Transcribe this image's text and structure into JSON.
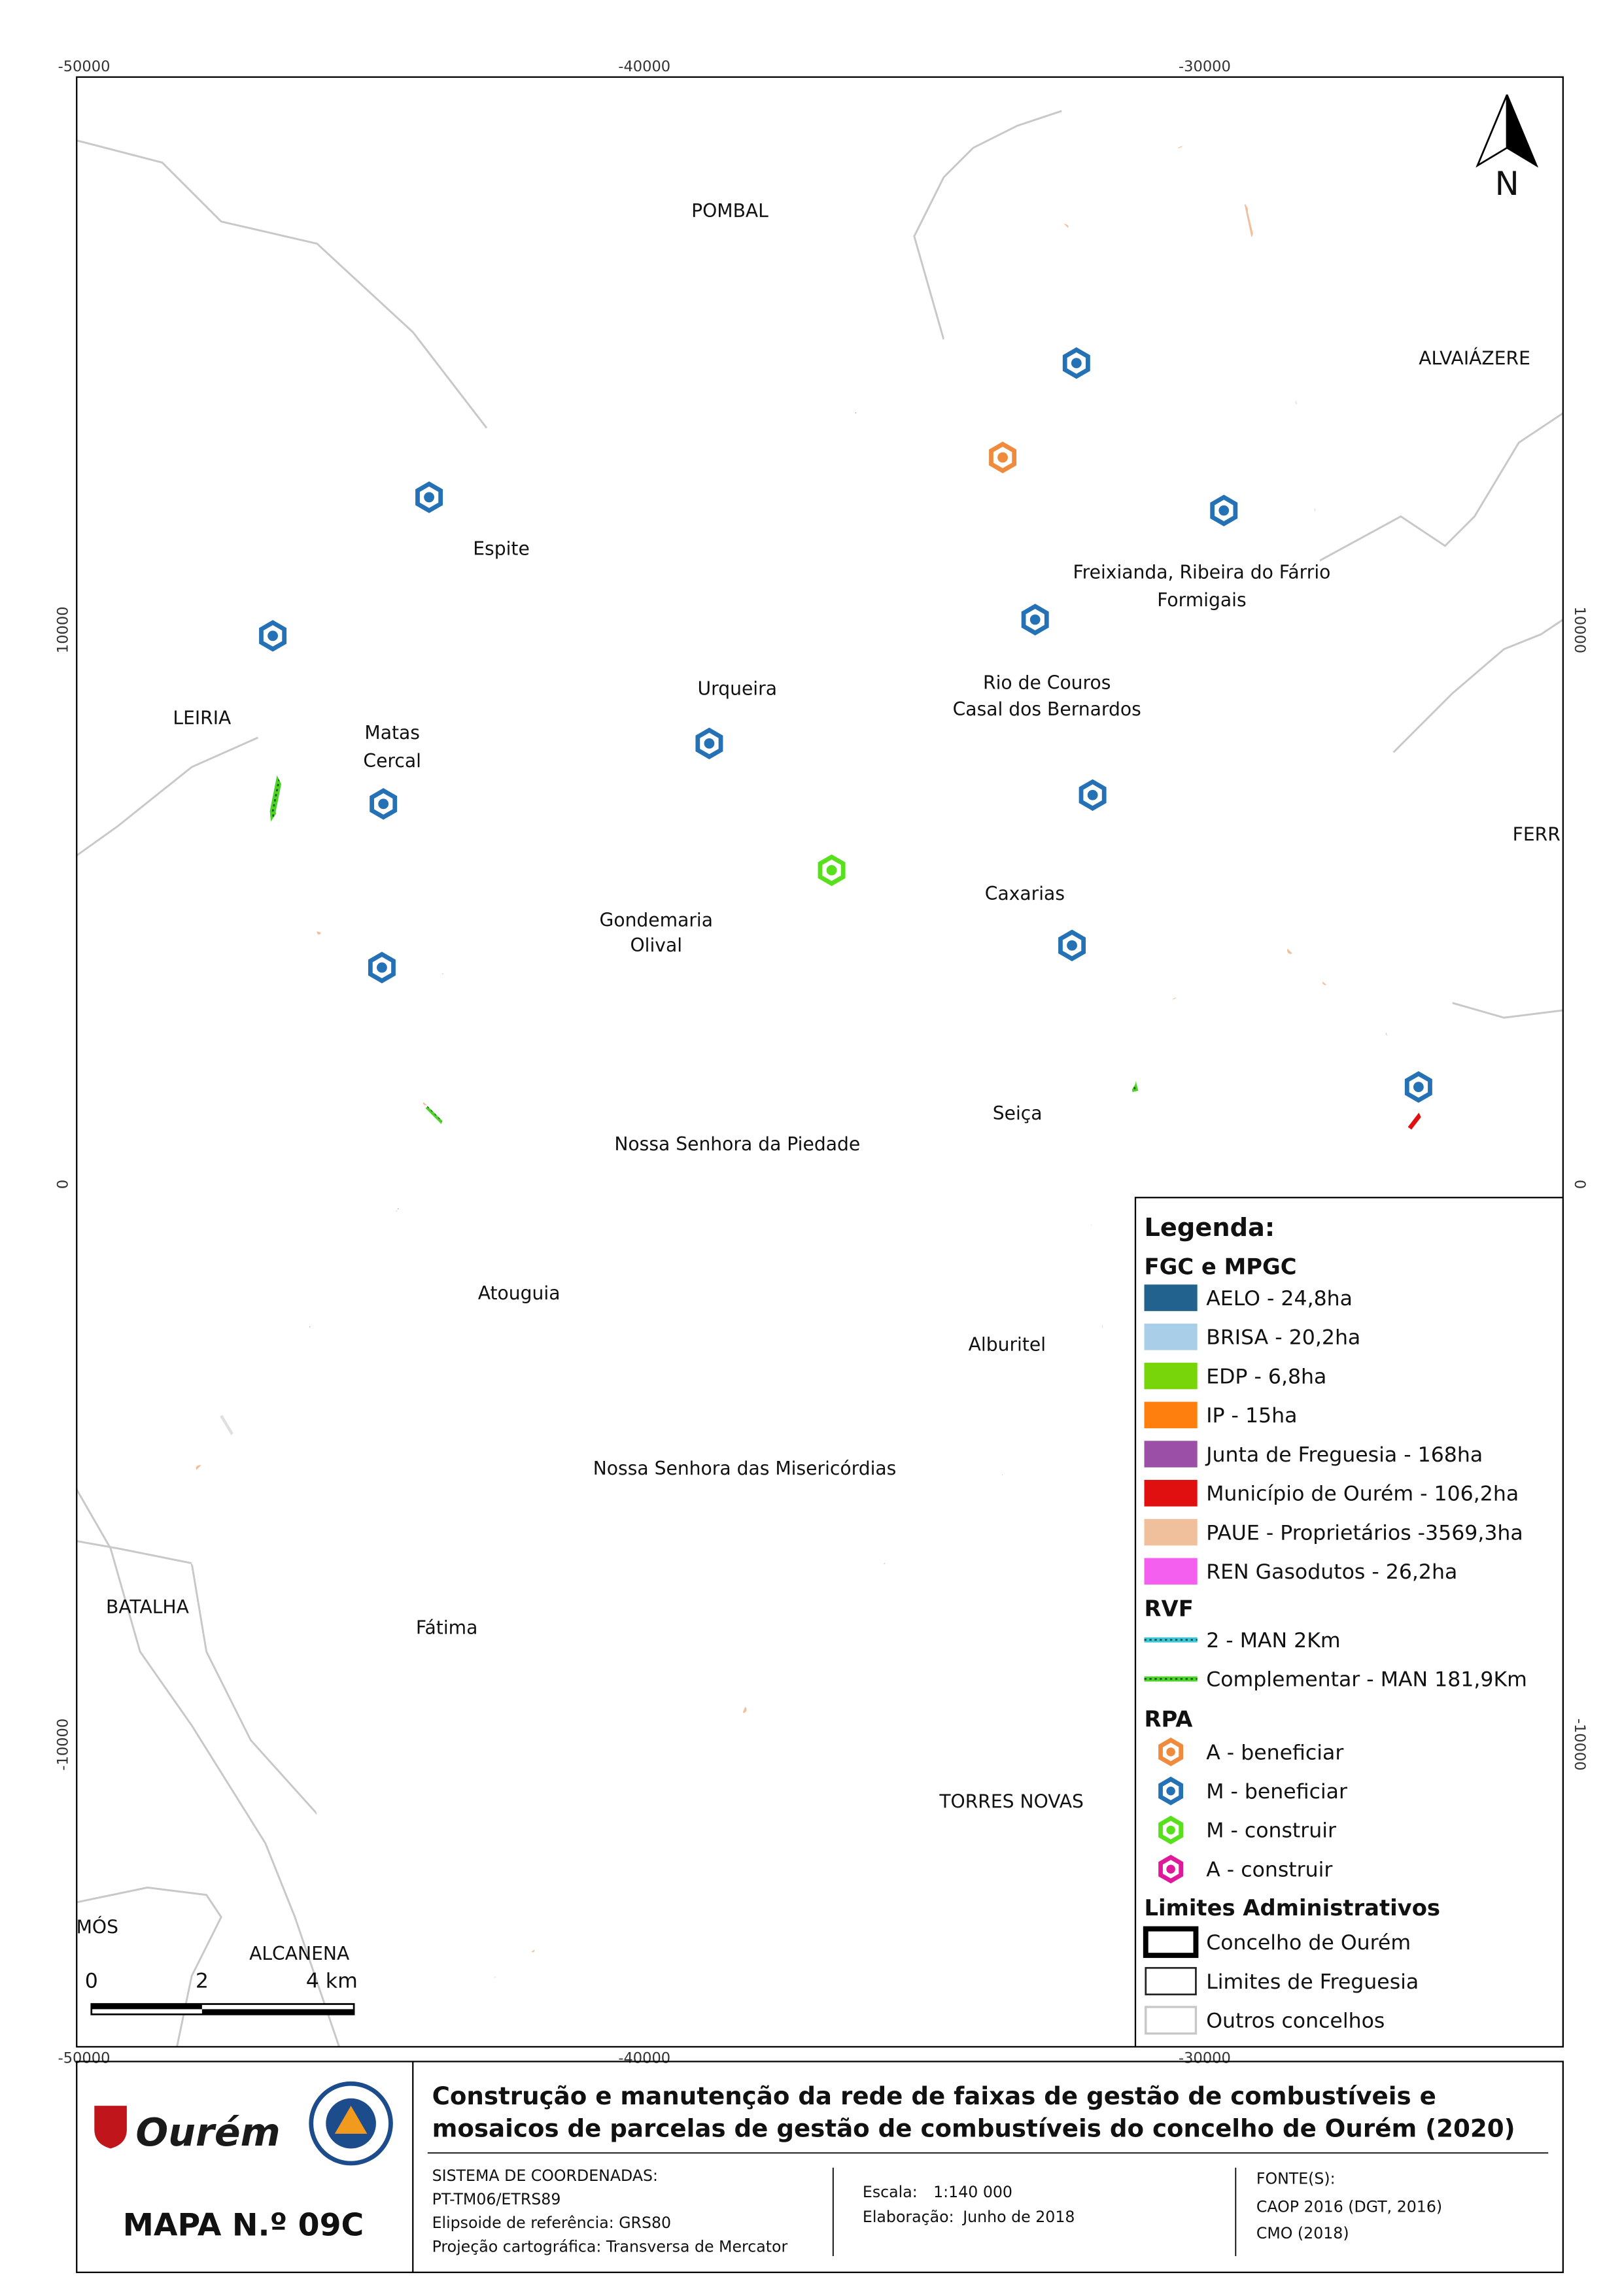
{
  "neighbor_labels": [
    "POMBAL",
    "ALVAIÁZERE",
    "LEIRIA",
    "FERR",
    "BATALHA",
    "TORRES NOVAS",
    "MÓS",
    "ALCANENA"
  ],
  "parish_labels": [
    "Espite",
    "Urqueira",
    "Freixianda, Ribeira do Fárrio",
    "Formigais",
    "Rio de Couros",
    "Casal dos Bernardos",
    "Matas",
    "Cercal",
    "Caxarias",
    "Gondemaria",
    "Olival",
    "Seiça",
    "Nossa Senhora da Piedade",
    "Atouguia",
    "Alburitel",
    "Nossa Senhora das Misericórdias",
    "Fátima"
  ],
  "coordinate_ticks": {
    "x": [
      "-50000",
      "-40000",
      "-30000"
    ],
    "y": [
      "10000",
      "0",
      "-10000"
    ]
  },
  "north_arrow": "N",
  "scale_bar": [
    "0",
    "2",
    "4 km"
  ],
  "legend": {
    "title": "Legenda:",
    "groups": [
      {
        "title": "FGC e MPGC",
        "kind": "box",
        "items": [
          {
            "label": "AELO - 24,8ha",
            "color": "#22628f"
          },
          {
            "label": "BRISA - 20,2ha",
            "color": "#a9cfe8"
          },
          {
            "label": "EDP - 6,8ha",
            "color": "#77d50a"
          },
          {
            "label": "IP - 15ha",
            "color": "#ff7f0e"
          },
          {
            "label": "Junta de Freguesia - 168ha",
            "color": "#9b4fa6"
          },
          {
            "label": "Município de Ourém - 106,2ha",
            "color": "#e01010"
          },
          {
            "label": "PAUE - Proprietários -3569,3ha",
            "color": "#f0bf9b"
          },
          {
            "label": "REN Gasodutos - 26,2ha",
            "color": "#f55ff0"
          }
        ]
      },
      {
        "title": "RVF",
        "kind": "line",
        "items": [
          {
            "label": "2 - MAN 2Km",
            "color": "#3cc6d8"
          },
          {
            "label": "Complementar - MAN 181,9Km",
            "color": "#4bd32a"
          }
        ]
      },
      {
        "title": "RPA",
        "kind": "hex",
        "items": [
          {
            "label": "A - beneficiar",
            "color": "#f08a3c"
          },
          {
            "label": "M - beneficiar",
            "color": "#2472b5"
          },
          {
            "label": "M - construir",
            "color": "#58e01c"
          },
          {
            "label": "A - construir",
            "color": "#e0199a"
          }
        ]
      },
      {
        "title": "Limites Administrativos",
        "kind": "outline",
        "items": [
          {
            "label": "Concelho de Ourém",
            "color": "#000000"
          },
          {
            "label": "Limites de Freguesia",
            "color": "#222222"
          },
          {
            "label": "Outros concelhos",
            "color": "#c8c8c8"
          }
        ]
      }
    ]
  },
  "footer": {
    "logo": "Ourém",
    "map_number": "MAPA N.º 09C",
    "title": [
      "Construção e manutenção da rede de faixas de gestão de combustíveis e",
      "mosaicos de parcelas de gestão de combustíveis do concelho de Ourém (2020)"
    ],
    "coordinates": [
      "SISTEMA DE COORDENADAS:",
      "PT-TM06/ETRS89",
      "Elipsoide de referência: GRS80",
      "Projeção cartográfica: Transversa de Mercator"
    ],
    "scale_label": "Escala:",
    "scale": "1:140 000",
    "date_label": "Elaboração:",
    "date": "Junho de 2018",
    "sources": [
      "FONTE(S):",
      "CAOP 2016 (DGT, 2016)",
      "CMO (2018)"
    ]
  }
}
